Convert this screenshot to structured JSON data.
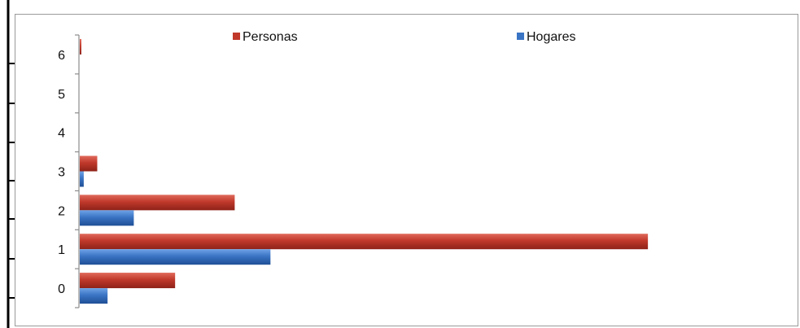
{
  "chart_data": {
    "type": "bar",
    "orientation": "horizontal",
    "categories": [
      "0",
      "1",
      "2",
      "3",
      "4",
      "5",
      "6"
    ],
    "series": [
      {
        "name": "Personas",
        "color": "#c0392b",
        "values": [
          120,
          715,
          195,
          22,
          0,
          0,
          2
        ]
      },
      {
        "name": "Hogares",
        "color": "#3a74c4",
        "values": [
          35,
          240,
          68,
          5,
          0,
          0,
          0
        ]
      }
    ],
    "xlim": [
      0,
      900
    ],
    "grid": false,
    "legend_position": "top"
  }
}
